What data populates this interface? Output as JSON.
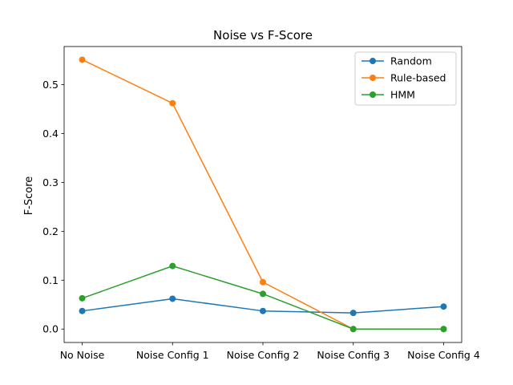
{
  "chart_data": {
    "type": "line",
    "title": "Noise vs F-Score",
    "xlabel": "",
    "ylabel": "F-Score",
    "categories": [
      "No Noise",
      "Noise Config 1",
      "Noise Config 2",
      "Noise Config 3",
      "Noise Config 4"
    ],
    "ylim": [
      -0.0275,
      0.578
    ],
    "yticks": [
      "0.0",
      "0.1",
      "0.2",
      "0.3",
      "0.4",
      "0.5"
    ],
    "grid": false,
    "legend_position": "top-right",
    "series": [
      {
        "name": "Random",
        "color": "#1f77b4",
        "values": [
          0.037,
          0.062,
          0.037,
          0.033,
          0.046
        ]
      },
      {
        "name": "Rule-based",
        "color": "#ff7f0e",
        "values": [
          0.551,
          0.462,
          0.096,
          0.0,
          0.0
        ]
      },
      {
        "name": "HMM",
        "color": "#2ca02c",
        "values": [
          0.063,
          0.129,
          0.072,
          0.0,
          0.0
        ]
      }
    ]
  }
}
